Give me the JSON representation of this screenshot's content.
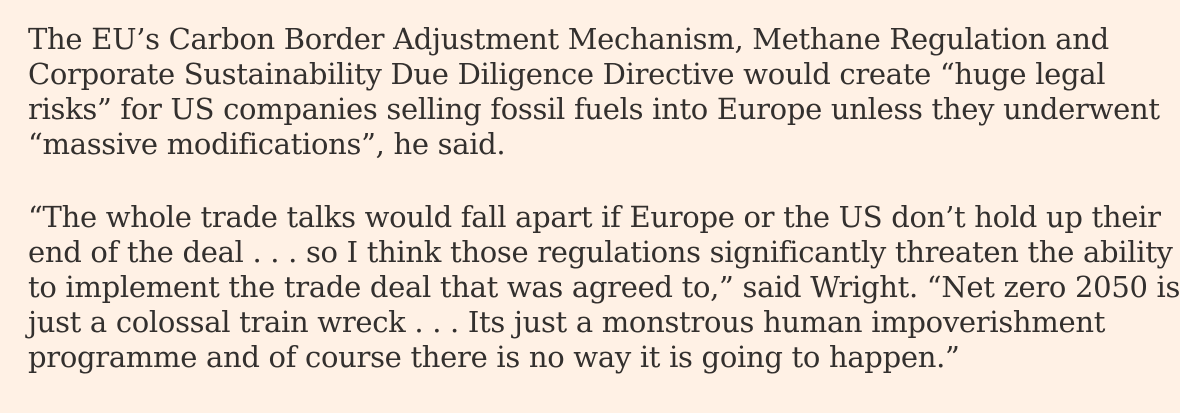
{
  "article": {
    "background_color": "#FFF1E5",
    "text_color": "#33302E",
    "paragraphs": [
      {
        "text": "The EU’s Carbon Border Adjustment Mechanism, Methane Regulation and Corporate Sustainability Due Diligence Directive would create “huge legal risks” for US companies selling fossil fuels into Europe unless they underwent “massive modifications”, he said.",
        "lines": [
          "The EU’s Carbon Border Adjustment Mechanism, Methane Regulation and",
          "Corporate Sustainability Due Diligence Directive would create “huge legal",
          "risks” for US companies selling fossil fuels into Europe unless they underwent",
          "“massive modifications”, he said."
        ]
      },
      {
        "text": "“The whole trade talks would fall apart if Europe or the US don’t hold up their end of the deal . . . so I think those regulations significantly threaten the ability to implement the trade deal that was agreed to,” said Wright. “Net zero 2050 is just a colossal train wreck . . . Its just a monstrous human impoverishment programme and of course there is no way it is going to happen.”",
        "lines": [
          "“The whole trade talks would fall apart if Europe or the US don’t hold up their",
          "end of the deal . . . so I think those regulations significantly threaten the ability",
          "to implement the trade deal that was agreed to,” said Wright. “Net zero 2050 is",
          "just a colossal train wreck . . . Its just a monstrous human impoverishment",
          "programme and of course there is no way it is going to happen.”"
        ]
      }
    ]
  }
}
